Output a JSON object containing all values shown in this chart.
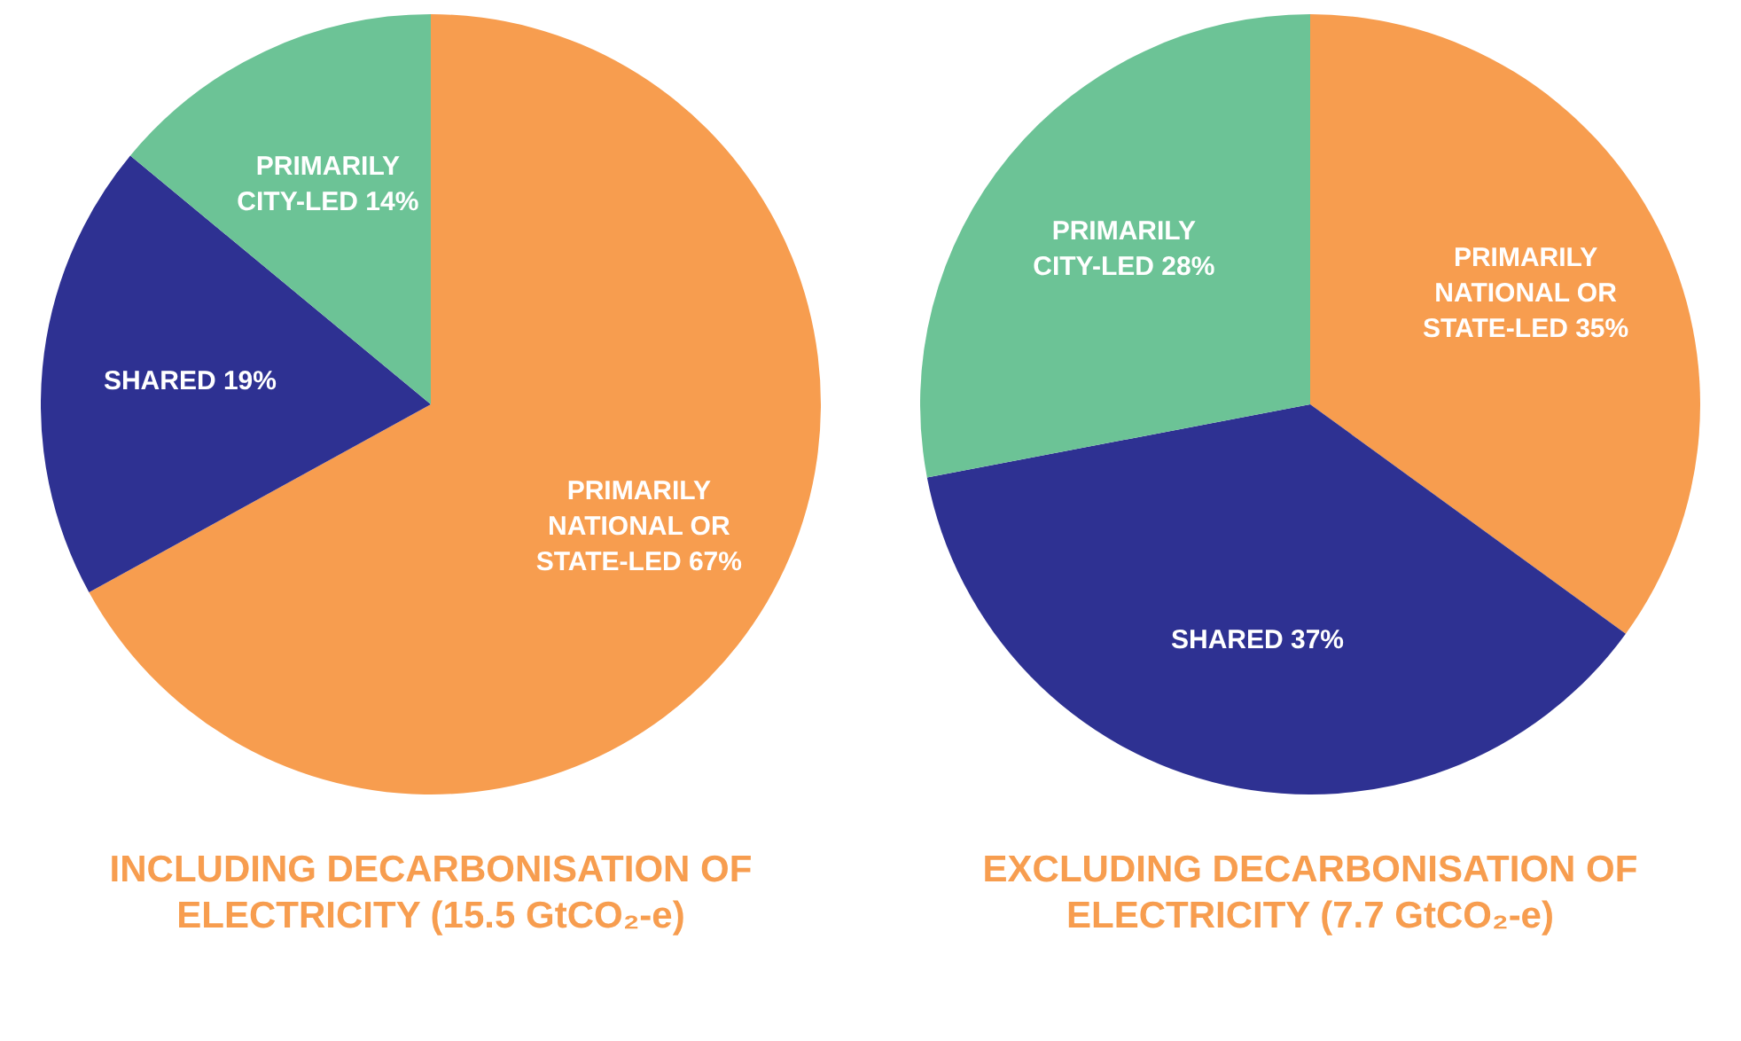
{
  "chart_data": [
    {
      "type": "pie",
      "title": "INCLUDING DECARBONISATION OF ELECTRICITY (15.5 GtCO₂-e)",
      "categories": [
        "PRIMARILY NATIONAL OR STATE-LED",
        "SHARED",
        "PRIMARILY CITY-LED"
      ],
      "values": [
        67,
        19,
        14
      ],
      "colors": [
        "#f79d4f",
        "#2e3192",
        "#6cc396"
      ],
      "value_labels": [
        "67%",
        "19%",
        "14%"
      ],
      "legend": false
    },
    {
      "type": "pie",
      "title": "EXCLUDING DECARBONISATION OF ELECTRICITY (7.7 GtCO₂-e)",
      "categories": [
        "PRIMARILY NATIONAL OR STATE-LED",
        "SHARED",
        "PRIMARILY CITY-LED"
      ],
      "values": [
        35,
        37,
        28
      ],
      "colors": [
        "#f79d4f",
        "#2e3192",
        "#6cc396"
      ],
      "value_labels": [
        "35%",
        "37%",
        "28%"
      ],
      "legend": false
    }
  ]
}
